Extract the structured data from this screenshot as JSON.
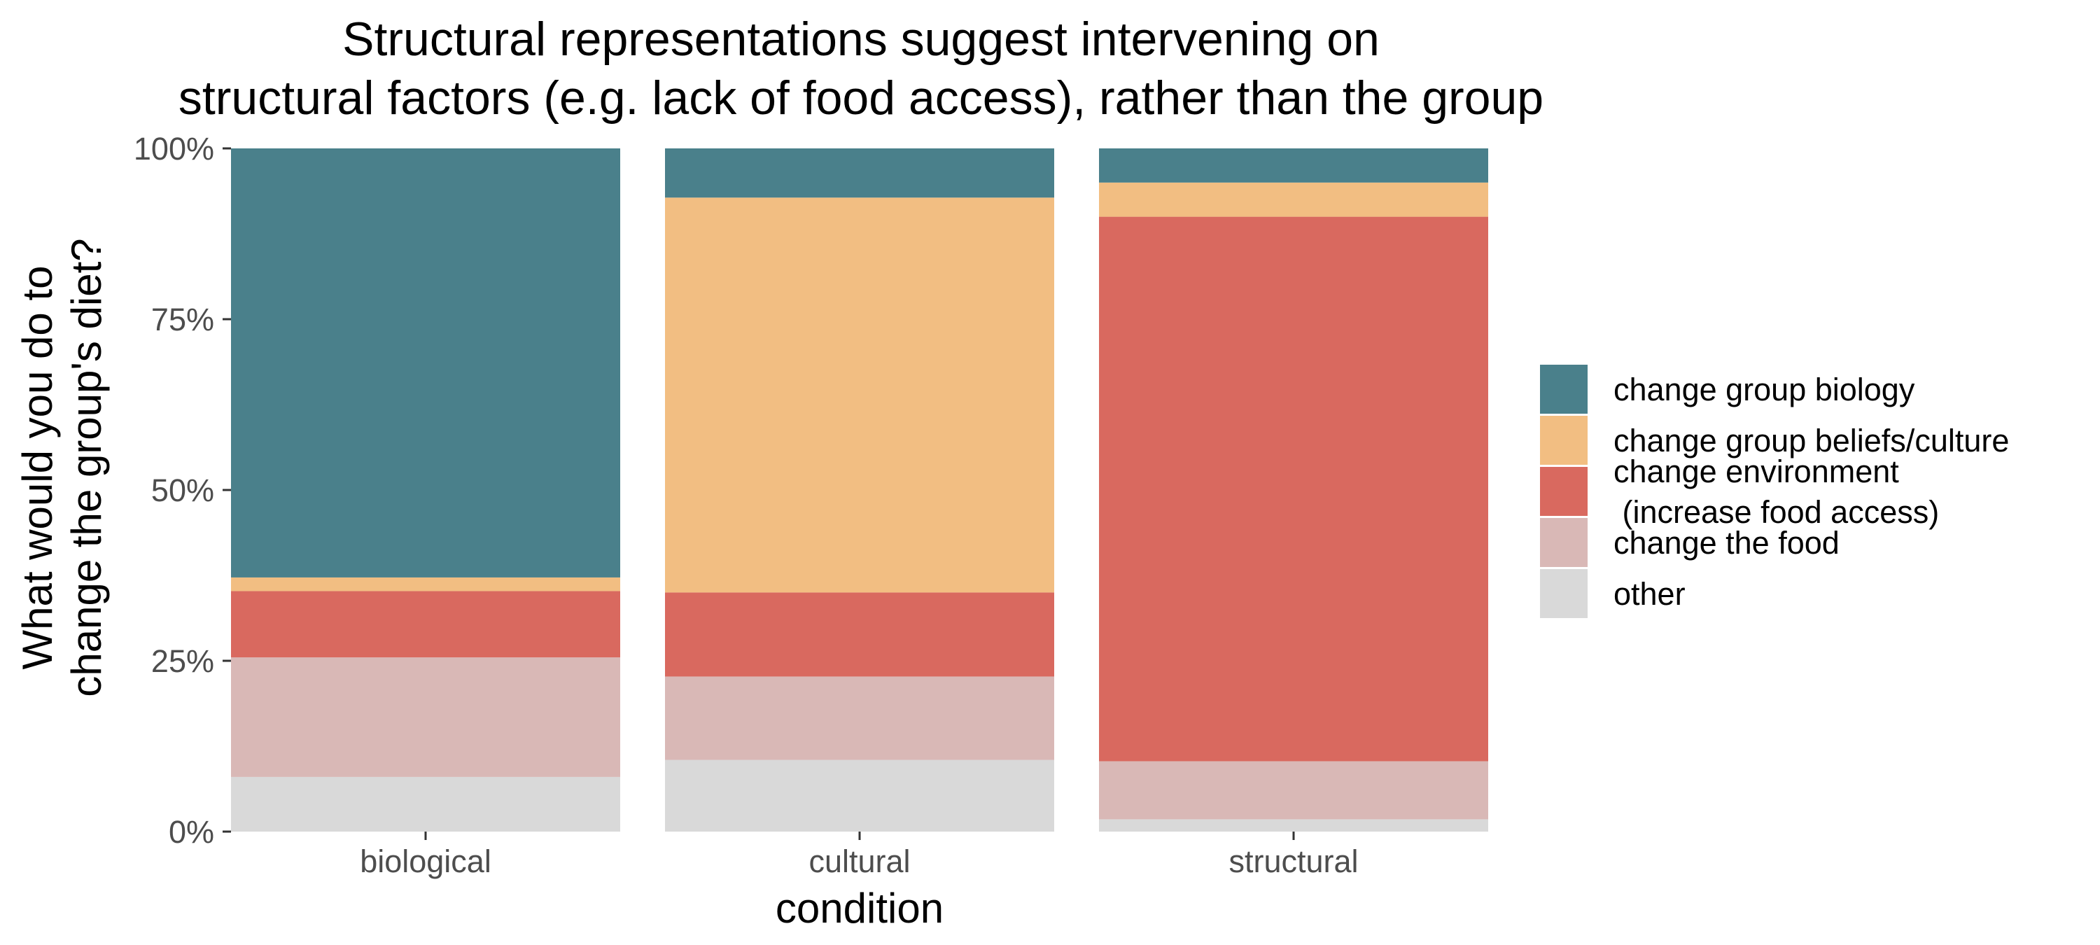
{
  "chart_data": {
    "type": "bar",
    "stacked": true,
    "title": [
      "Structural representations suggest intervening on",
      "structural factors (e.g. lack of food access), rather than the group"
    ],
    "xlabel": "condition",
    "ylabel": [
      "What would you do to",
      "change the group's diet?"
    ],
    "categories": [
      "biological",
      "cultural",
      "structural"
    ],
    "ylim": [
      0,
      1
    ],
    "yticks": [
      0,
      0.25,
      0.5,
      0.75,
      1.0
    ],
    "ytick_labels": [
      "0%",
      "25%",
      "50%",
      "75%",
      "100%"
    ],
    "grid": false,
    "legend_position": "right",
    "series": [
      {
        "name": "other",
        "color": "#D9D9D9",
        "values": [
          0.08,
          0.105,
          0.018
        ]
      },
      {
        "name": "change the food",
        "color": "#D9B8B6",
        "values": [
          0.175,
          0.122,
          0.085
        ]
      },
      {
        "name": [
          "change environment",
          " (increase food access)"
        ],
        "color": "#D9695F",
        "values": [
          0.097,
          0.123,
          0.797
        ]
      },
      {
        "name": "change group beliefs/culture",
        "color": "#F2BE82",
        "values": [
          0.02,
          0.578,
          0.05
        ]
      },
      {
        "name": "change group biology",
        "color": "#4A808B",
        "values": [
          0.628,
          0.072,
          0.05
        ]
      }
    ],
    "legend_order": [
      4,
      3,
      2,
      1,
      0
    ]
  }
}
